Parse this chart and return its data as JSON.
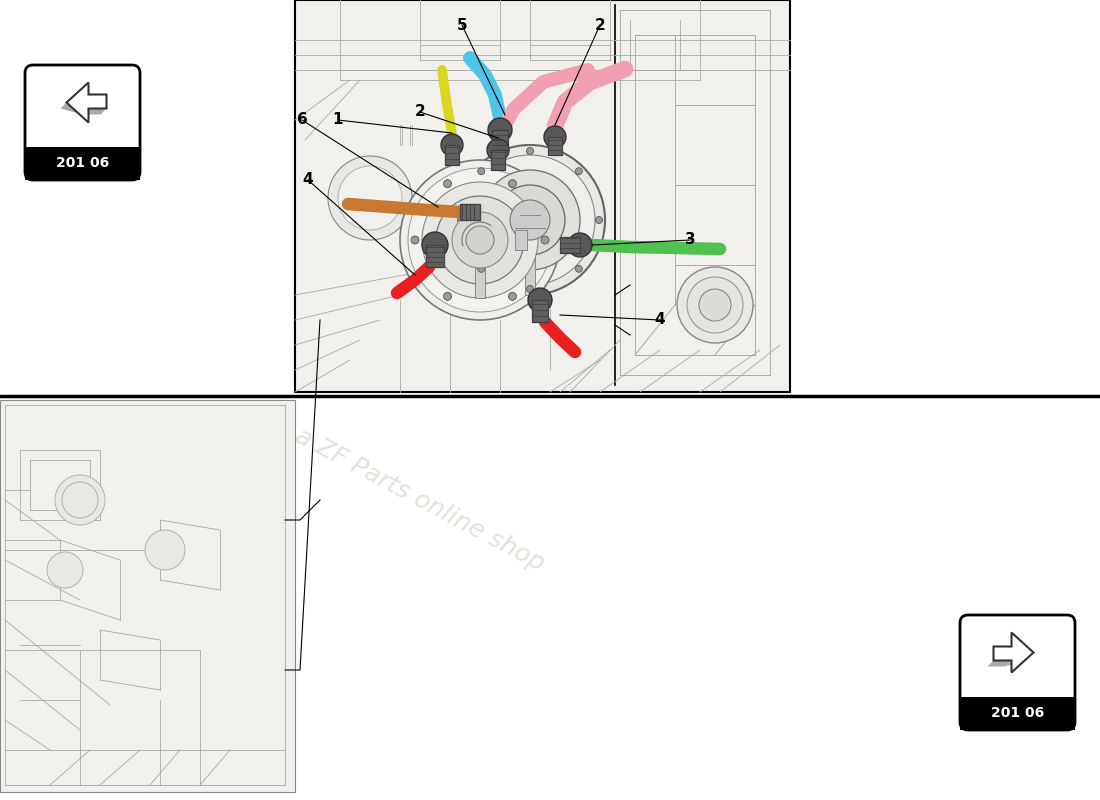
{
  "bg_color": "#ffffff",
  "nav_label": "201 06",
  "line_color": "#555555",
  "bg_sketch": "#F0EEE8",
  "hoses": {
    "cyan": "#4FC3E8",
    "pink": "#F0A0B0",
    "orange": "#C87830",
    "red": "#E82020",
    "green": "#50C050",
    "yellow": "#D8D820",
    "magenta": "#E080A0"
  },
  "watermark": "a ZF Parts online shop"
}
